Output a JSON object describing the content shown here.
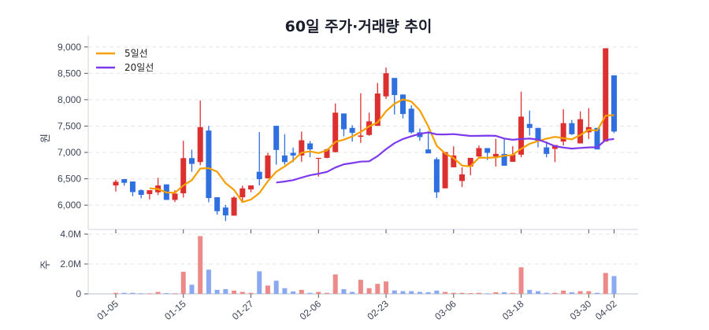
{
  "chart_data": {
    "type": "candlestick",
    "title": "60일 주가·거래량 추이",
    "price_axis": {
      "label": "원",
      "ticks": [
        "6,000",
        "6,500",
        "7,000",
        "7,500",
        "8,000",
        "8,500",
        "9,000"
      ],
      "tick_values": [
        6000,
        6500,
        7000,
        7500,
        8000,
        8500,
        9000
      ],
      "ylim": [
        5540,
        9220
      ],
      "grid": true
    },
    "volume_axis": {
      "label": "주",
      "ticks": [
        "0",
        "2.0M",
        "4.0M"
      ],
      "tick_values": [
        0,
        2000000,
        4000000
      ],
      "ylim": [
        0,
        4000000
      ],
      "grid": true
    },
    "x_tick_labels": [
      "01-05",
      "01-15",
      "01-27",
      "02-06",
      "02-23",
      "03-06",
      "03-18",
      "03-30",
      "04-02"
    ],
    "legend": {
      "placement": "top-left",
      "items": [
        {
          "label": "5일선",
          "color": "#f59f00"
        },
        {
          "label": "20일선",
          "color": "#7c3aed"
        }
      ]
    },
    "colors": {
      "up": "#dc2f2f",
      "down": "#2f6fe0",
      "up_volume": "#ec8a8a",
      "down_volume": "#8aa9f0",
      "ma5": "#f59f00",
      "ma20": "#7c3aed"
    },
    "dates": [
      "01-05",
      "01-06",
      "01-07",
      "01-08",
      "01-09",
      "01-12",
      "01-13",
      "01-14",
      "01-15",
      "01-16",
      "01-19",
      "01-20",
      "01-21",
      "01-22",
      "01-23",
      "01-26",
      "01-27",
      "01-28",
      "01-29",
      "01-30",
      "02-02",
      "02-03",
      "02-04",
      "02-05",
      "02-06",
      "02-09",
      "02-10",
      "02-11",
      "02-12",
      "02-13",
      "02-19",
      "02-20",
      "02-23",
      "02-24",
      "02-25",
      "02-26",
      "02-27",
      "03-03",
      "03-04",
      "03-05",
      "03-06",
      "03-09",
      "03-10",
      "03-11",
      "03-12",
      "03-13",
      "03-16",
      "03-17",
      "03-18",
      "03-19",
      "03-20",
      "03-23",
      "03-24",
      "03-25",
      "03-26",
      "03-27",
      "03-30",
      "03-31",
      "04-01",
      "04-02"
    ],
    "ohlc": [
      [
        6374,
        6484,
        6259,
        6444
      ],
      [
        6494,
        6494,
        6369,
        6424
      ],
      [
        6449,
        6449,
        6170,
        6249
      ],
      [
        6284,
        6299,
        6130,
        6195
      ],
      [
        6210,
        6284,
        6110,
        6284
      ],
      [
        6244,
        6519,
        6190,
        6374
      ],
      [
        6394,
        6394,
        6100,
        6100
      ],
      [
        6100,
        6284,
        6060,
        6220
      ],
      [
        6225,
        7221,
        6145,
        6892
      ],
      [
        6892,
        7052,
        6633,
        6783
      ],
      [
        6817,
        7988,
        6758,
        7480
      ],
      [
        7415,
        7505,
        6055,
        6135
      ],
      [
        6150,
        6150,
        5821,
        5886
      ],
      [
        5955,
        6005,
        5701,
        5806
      ],
      [
        5801,
        6170,
        5801,
        6145
      ],
      [
        6150,
        6369,
        6075,
        6319
      ],
      [
        6299,
        6374,
        6244,
        6374
      ],
      [
        6633,
        7386,
        6374,
        6494
      ],
      [
        6509,
        6992,
        6509,
        6942
      ],
      [
        7505,
        7505,
        6768,
        7047
      ],
      [
        6942,
        7346,
        6768,
        6817
      ],
      [
        6992,
        7092,
        6817,
        6942
      ],
      [
        6942,
        7396,
        6822,
        7231
      ],
      [
        7171,
        7216,
        6907,
        7057
      ],
      [
        6882,
        6897,
        6543,
        6897
      ],
      [
        6897,
        7070,
        6890,
        7057
      ],
      [
        7007,
        7929,
        7000,
        7754
      ],
      [
        7739,
        7739,
        7306,
        7440
      ],
      [
        7465,
        7515,
        7206,
        7371
      ],
      [
        7296,
        8123,
        7181,
        7321
      ],
      [
        7331,
        7754,
        7316,
        7590
      ],
      [
        7505,
        8317,
        7500,
        8118
      ],
      [
        8063,
        8611,
        8013,
        8502
      ],
      [
        8412,
        8412,
        7719,
        8088
      ],
      [
        8098,
        8098,
        7645,
        7729
      ],
      [
        7829,
        7894,
        7356,
        7381
      ],
      [
        7381,
        7455,
        7221,
        7291
      ],
      [
        7057,
        7405,
        6982,
        6982
      ],
      [
        6872,
        6907,
        6135,
        6244
      ],
      [
        6319,
        7007,
        6319,
        7007
      ],
      [
        6718,
        7116,
        6718,
        6942
      ],
      [
        6459,
        6718,
        6344,
        6583
      ],
      [
        6733,
        6897,
        6568,
        6897
      ],
      [
        6922,
        7131,
        6922,
        7082
      ],
      [
        7082,
        7082,
        6857,
        6992
      ],
      [
        6922,
        7256,
        6733,
        6972
      ],
      [
        6972,
        7256,
        6748,
        6748
      ],
      [
        6822,
        7121,
        6822,
        6957
      ],
      [
        6957,
        8153,
        6907,
        7679
      ],
      [
        7540,
        7794,
        7321,
        7465
      ],
      [
        7465,
        7465,
        7096,
        7221
      ],
      [
        7096,
        7206,
        6907,
        6972
      ],
      [
        7067,
        7141,
        6817,
        7141
      ],
      [
        7206,
        7819,
        7131,
        7555
      ],
      [
        7555,
        7615,
        7331,
        7346
      ],
      [
        7171,
        7779,
        7171,
        7630
      ],
      [
        7381,
        7839,
        7256,
        7480
      ],
      [
        7465,
        7465,
        7057,
        7057
      ],
      [
        7206,
        8975,
        7206,
        8975
      ],
      [
        8462,
        8462,
        7366,
        7396
      ]
    ],
    "volume_millions": [
      0.07,
      0.07,
      0.07,
      0.03,
      0.03,
      0.13,
      0.05,
      0.03,
      1.48,
      0.61,
      3.87,
      1.62,
      0.27,
      0.32,
      0.22,
      0.13,
      0.07,
      1.51,
      0.56,
      0.88,
      0.38,
      0.16,
      0.27,
      0.07,
      0.13,
      0.07,
      1.3,
      0.32,
      0.13,
      0.94,
      0.38,
      0.67,
      0.83,
      0.23,
      0.18,
      0.18,
      0.13,
      0.11,
      0.22,
      0.13,
      0.07,
      0.07,
      0.05,
      0.07,
      0.02,
      0.11,
      0.11,
      0.07,
      1.78,
      0.27,
      0.18,
      0.07,
      0.07,
      0.22,
      0.11,
      0.18,
      0.18,
      0.07,
      1.4,
      1.19
    ]
  }
}
